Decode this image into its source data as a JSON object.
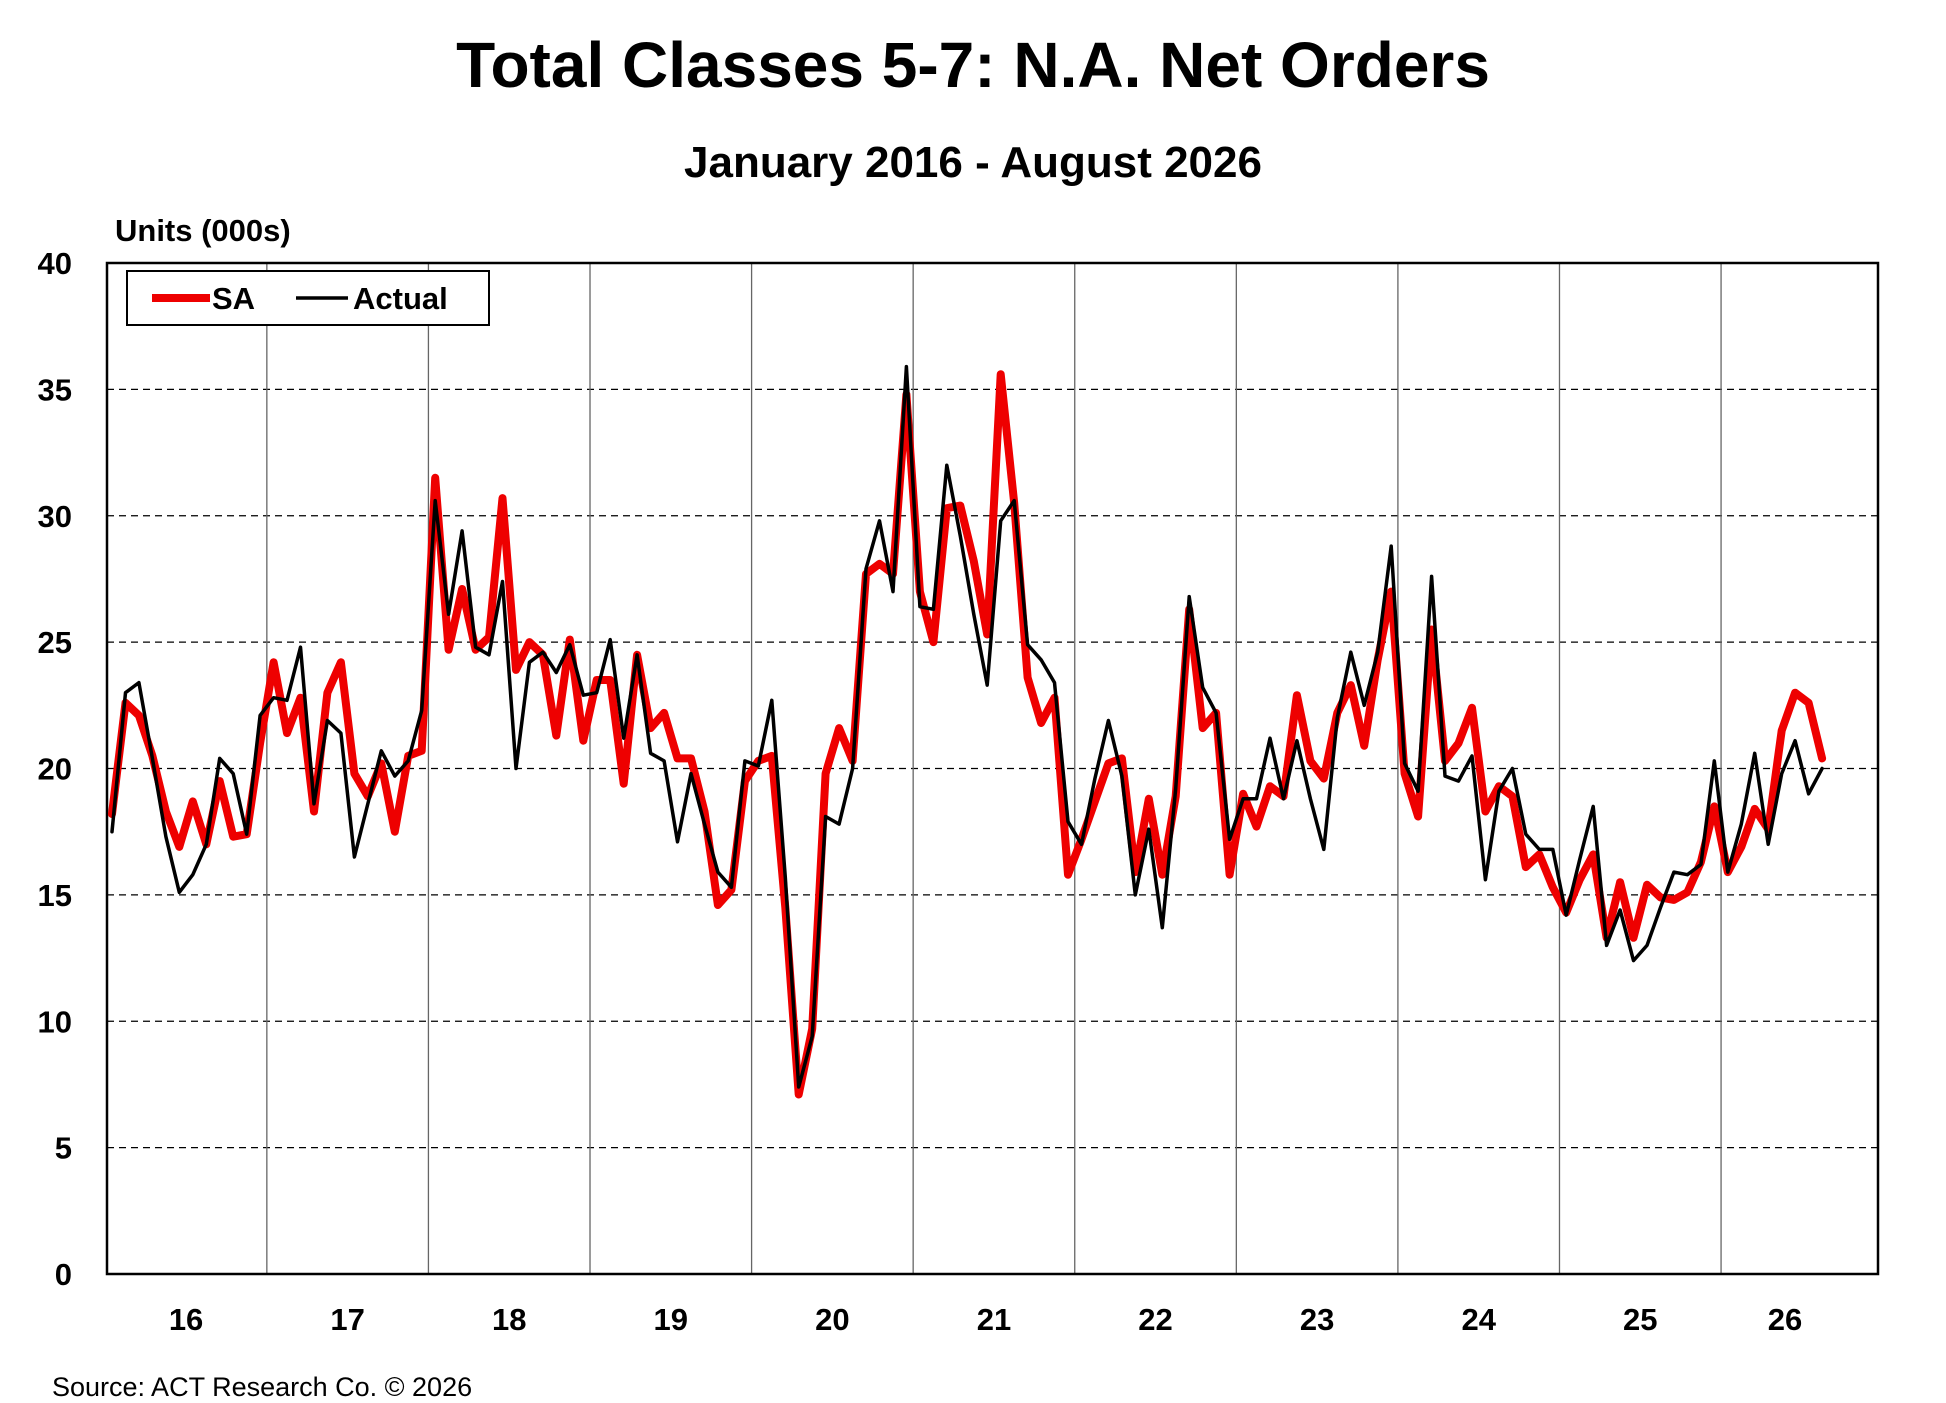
{
  "header": {
    "title": "Total Classes 5-7: N.A. Net Orders",
    "subtitle": "January 2016 - August 2026"
  },
  "footer": {
    "source": "Source: ACT Research Co. © 2026"
  },
  "chart_data": {
    "type": "line",
    "title": "Total Classes 5-7: N.A. Net Orders",
    "subtitle": "January 2016 - August 2026",
    "ylabel": "Units (000s)",
    "xlabel": "",
    "ylim": [
      0,
      40
    ],
    "yticks": [
      0,
      5,
      10,
      15,
      20,
      25,
      30,
      35,
      40
    ],
    "x_start": "2016-01",
    "x_end": "2026-08",
    "year_labels": [
      "16",
      "17",
      "18",
      "19",
      "20",
      "21",
      "22",
      "23",
      "24",
      "25",
      "26"
    ],
    "grid": {
      "horizontal": "dashed",
      "vertical": "solid at year boundaries"
    },
    "legend": {
      "position": "top-left",
      "entries": [
        "SA",
        "Actual"
      ]
    },
    "colors": {
      "SA": "#ee0000",
      "Actual": "#000000"
    },
    "series": [
      {
        "name": "SA",
        "values": [
          18.2,
          22.6,
          22.1,
          20.5,
          18.3,
          16.9,
          18.7,
          17.0,
          19.5,
          17.3,
          17.4,
          21.0,
          24.2,
          21.4,
          22.8,
          18.3,
          23.0,
          24.2,
          19.8,
          18.9,
          20.2,
          17.5,
          20.5,
          20.7,
          31.5,
          24.7,
          27.1,
          24.7,
          25.2,
          30.7,
          23.9,
          25.0,
          24.5,
          21.3,
          25.1,
          21.1,
          23.5,
          23.5,
          19.4,
          24.5,
          21.6,
          22.2,
          20.4,
          20.4,
          18.3,
          14.6,
          15.2,
          19.5,
          20.3,
          20.5,
          14.5,
          7.1,
          9.7,
          19.8,
          21.6,
          20.3,
          27.7,
          28.1,
          27.7,
          34.8,
          27.0,
          25.0,
          30.3,
          30.4,
          28.2,
          25.3,
          35.6,
          30.5,
          23.6,
          21.8,
          22.8,
          15.8,
          17.2,
          18.7,
          20.2,
          20.4,
          15.9,
          18.8,
          15.8,
          18.9,
          26.3,
          21.6,
          22.2,
          15.8,
          19.0,
          17.7,
          19.3,
          18.9,
          22.9,
          20.3,
          19.6,
          22.2,
          23.3,
          20.9,
          24.3,
          27.0,
          19.8,
          18.1,
          25.5,
          20.3,
          21.0,
          22.4,
          18.3,
          19.3,
          18.9,
          16.1,
          16.6,
          15.3,
          14.3,
          15.6,
          16.6,
          13.3,
          15.5,
          13.3,
          15.4,
          14.9,
          14.8,
          15.1,
          16.3,
          18.5,
          15.9,
          16.9,
          18.4,
          17.6,
          21.5,
          23.0,
          22.6,
          20.4
        ]
      },
      {
        "name": "Actual",
        "values": [
          17.5,
          23.0,
          23.4,
          20.4,
          17.3,
          15.1,
          15.8,
          17.0,
          20.4,
          19.8,
          17.4,
          22.1,
          22.8,
          22.7,
          24.8,
          18.6,
          21.9,
          21.4,
          16.5,
          18.6,
          20.7,
          19.7,
          20.3,
          22.3,
          30.6,
          26.1,
          29.4,
          24.8,
          24.5,
          27.4,
          20.0,
          24.2,
          24.6,
          23.8,
          24.9,
          22.9,
          23.0,
          25.1,
          21.2,
          24.5,
          20.6,
          20.3,
          17.1,
          19.8,
          17.8,
          15.9,
          15.3,
          20.3,
          20.1,
          22.7,
          15.7,
          7.4,
          9.4,
          18.1,
          17.8,
          20.0,
          27.9,
          29.8,
          27.0,
          35.9,
          26.4,
          26.3,
          32.0,
          29.2,
          26.1,
          23.3,
          29.8,
          30.6,
          24.9,
          24.3,
          23.4,
          17.9,
          17.0,
          19.6,
          21.9,
          19.7,
          15.0,
          17.6,
          13.7,
          19.2,
          26.8,
          23.2,
          22.2,
          17.2,
          18.8,
          18.8,
          21.2,
          18.8,
          21.1,
          18.8,
          16.8,
          22.0,
          24.6,
          22.5,
          24.6,
          28.8,
          20.2,
          19.1,
          27.6,
          19.7,
          19.5,
          20.5,
          15.6,
          19.1,
          20.0,
          17.4,
          16.8,
          16.8,
          14.2,
          16.4,
          18.5,
          13.0,
          14.4,
          12.4,
          13.0,
          14.5,
          15.9,
          15.8,
          16.2,
          20.3,
          15.9,
          17.8,
          20.6,
          17.0,
          19.8,
          21.1,
          19.0,
          20.0
        ]
      }
    ]
  }
}
